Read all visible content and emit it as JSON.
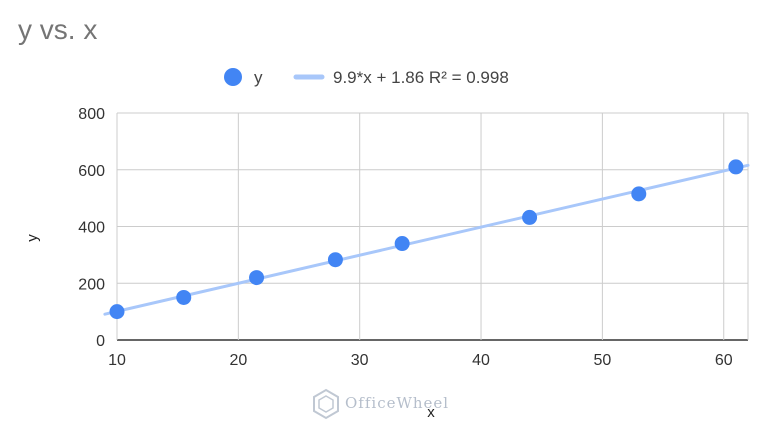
{
  "chart_data": {
    "type": "scatter",
    "title": "y vs. x",
    "xlabel": "x",
    "ylabel": "y",
    "xlim": [
      10,
      62
    ],
    "ylim": [
      0,
      800
    ],
    "x_ticks": [
      10,
      20,
      30,
      40,
      50,
      60
    ],
    "y_ticks": [
      0,
      200,
      400,
      600,
      800
    ],
    "grid": true,
    "legend_position": "top",
    "series": [
      {
        "name": "y",
        "color": "#4285f4",
        "points": [
          {
            "x": 10,
            "y": 100
          },
          {
            "x": 15.5,
            "y": 150
          },
          {
            "x": 21.5,
            "y": 220
          },
          {
            "x": 28,
            "y": 283
          },
          {
            "x": 33.5,
            "y": 340
          },
          {
            "x": 44,
            "y": 432
          },
          {
            "x": 53,
            "y": 515
          },
          {
            "x": 61,
            "y": 610
          }
        ]
      }
    ],
    "trendline": {
      "label": "9.9*x + 1.86 R² = 0.998",
      "slope": 9.9,
      "intercept": 1.86,
      "color": "#a8c7fa"
    }
  },
  "watermark": {
    "text": "OfficeWheel",
    "icon": "officewheel-logo-icon"
  }
}
